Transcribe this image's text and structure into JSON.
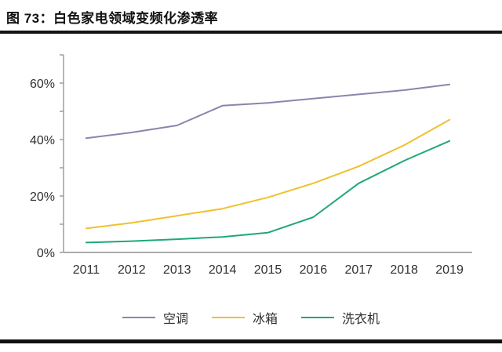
{
  "figure": {
    "title": "图 73：白色家电领域变频化渗透率"
  },
  "chart_data": {
    "type": "line",
    "x": [
      2011,
      2012,
      2013,
      2014,
      2015,
      2016,
      2017,
      2018,
      2019
    ],
    "series": [
      {
        "name": "空调",
        "color": "#8b84ae",
        "values": [
          40.5,
          42.5,
          45,
          52,
          53,
          54.5,
          56,
          57.5,
          59.5
        ]
      },
      {
        "name": "冰箱",
        "color": "#f0c02f",
        "values": [
          8.5,
          10.5,
          13,
          15.5,
          19.5,
          24.5,
          30.5,
          38,
          47
        ]
      },
      {
        "name": "洗衣机",
        "color": "#1fa878",
        "values": [
          3.5,
          4,
          4.7,
          5.5,
          7,
          12.5,
          24.5,
          32.5,
          39.5
        ]
      }
    ],
    "title": "",
    "xlabel": "",
    "ylabel": "",
    "ylim": [
      0,
      70
    ],
    "y_major_tick_labels": [
      "0%",
      "20%",
      "40%",
      "60%"
    ],
    "y_major_tick_values": [
      0,
      20,
      40,
      60
    ],
    "y_minor_step": 10,
    "grid": false,
    "legend_position": "bottom",
    "axis_color": "#9e9e9e",
    "x_axis_color": "#ababab",
    "text_color": "#303030"
  }
}
